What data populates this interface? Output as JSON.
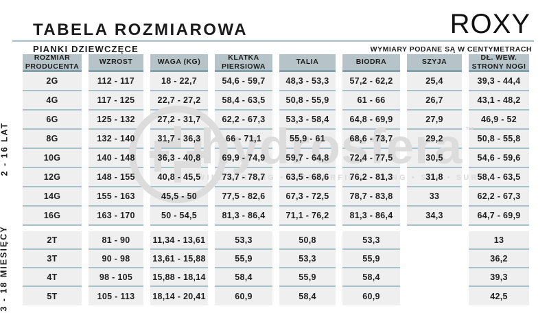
{
  "header": {
    "title": "TABELA ROZMIAROWA",
    "subtitle": "PIANKI DZIEWCZĘCE",
    "brand": "ROXY",
    "units_note": "WYMIARY PODANE SĄ W CENTYMETRACH"
  },
  "watermark": {
    "name": "hydrosfera",
    "trademark": "™",
    "tagline": "WINDSURFING • KITESURFING • WING • SUP • SURF"
  },
  "colors": {
    "text": "#1c1c1c",
    "rule": "#b9ccd3",
    "header_cell_bg": "#b6c4ca",
    "header_cell_border": "#83a1ad",
    "cell_bg": "#f0efef",
    "cell_border": "#a7c1ca",
    "watermark": "#dcdcdc"
  },
  "table": {
    "columns": [
      "ROZMIAR\nPRODUCENTA",
      "WZROST",
      "WAGA (KG)",
      "KLATKA\nPIERSIOWA",
      "TALIA",
      "BIODRA",
      "SZYJA",
      "DŁ. WEW.\nSTRONY NOGI"
    ],
    "sections": [
      {
        "label": "2 - 16 LAT",
        "rows": [
          {
            "size": "2G",
            "cells": [
              "112 - 117",
              "18 - 22,7",
              "54,6 - 59,7",
              "48,3 - 53,3",
              "57,2 - 62,2",
              "25,4",
              "39,3 - 44,4"
            ]
          },
          {
            "size": "4G",
            "cells": [
              "117 - 125",
              "22,7 - 27,2",
              "58,4 - 63,5",
              "50,8 - 55,9",
              "61 - 66",
              "26,7",
              "43,1 - 48,2"
            ]
          },
          {
            "size": "6G",
            "cells": [
              "125 - 132",
              "27,2 - 31,7",
              "62,2 - 67,3",
              "53,3 - 58,4",
              "64,8 - 69,9",
              "27,9",
              "46,9 - 52"
            ]
          },
          {
            "size": "8G",
            "cells": [
              "132 - 140",
              "31,7 - 36,3",
              "66 - 71,1",
              "55,9 - 61",
              "68,6 - 73,7",
              "29,2",
              "50,8 - 55,8"
            ]
          },
          {
            "size": "10G",
            "cells": [
              "140 - 148",
              "36,3 - 40,8",
              "69,9 - 74,9",
              "59,7 - 64,8",
              "72,4 - 77,5",
              "30,5",
              "54,6 - 59,6"
            ]
          },
          {
            "size": "12G",
            "cells": [
              "148 - 155",
              "40,8 - 45,5",
              "73,7 - 78,7",
              "63,5 - 68,6",
              "76,2 - 81,3",
              "31,8",
              "58,4 - 63,5"
            ]
          },
          {
            "size": "14G",
            "cells": [
              "155 - 163",
              "45,5 - 50",
              "77,5 - 82,6",
              "67,3 - 72,5",
              "78,7 - 83,8",
              "33",
              "62,2 - 67,3"
            ]
          },
          {
            "size": "16G",
            "cells": [
              "163 - 170",
              "50 - 54,5",
              "81,3 - 86,4",
              "71,1 - 76,2",
              "81,3 - 86,4",
              "34,3",
              "64,7 - 69,9"
            ]
          }
        ]
      },
      {
        "label": "3 - 18 MIESIĘCY",
        "rows": [
          {
            "size": "2T",
            "cells": [
              "81 - 90",
              "11,34 - 13,61",
              "53,3",
              "50,8",
              "53,3",
              null,
              "13"
            ]
          },
          {
            "size": "3T",
            "cells": [
              "90 - 98",
              "13,61 - 15,88",
              "55,9",
              "53,3",
              "55,9",
              null,
              "36,2"
            ]
          },
          {
            "size": "4T",
            "cells": [
              "98 - 105",
              "15,88 - 18,14",
              "58,4",
              "55,9",
              "58,4",
              null,
              "39,3"
            ]
          },
          {
            "size": "5T",
            "cells": [
              "105 - 113",
              "18,14 - 20,41",
              "60,9",
              "58,4",
              "60,9",
              null,
              "42,5"
            ]
          }
        ]
      }
    ]
  }
}
